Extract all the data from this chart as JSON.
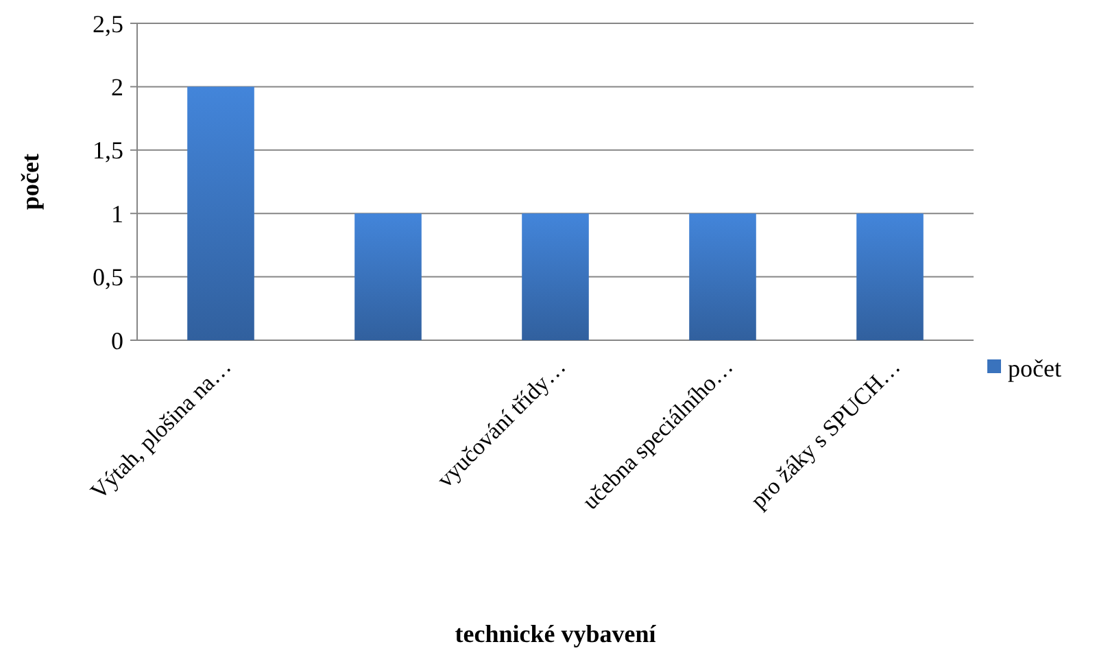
{
  "chart_data": {
    "type": "bar",
    "xlabel": "technické vybavení",
    "ylabel": "počet",
    "categories": [
      "Výtah, plošina na…",
      null,
      "vyučování třídy…",
      "učebna speciálního…",
      "pro žáky s SPUCH…"
    ],
    "series": [
      {
        "name": "počet",
        "color": "#3a73bd",
        "values": [
          2,
          1,
          1,
          1,
          1
        ]
      }
    ],
    "ylim": [
      0,
      2.5
    ],
    "yticks": [
      0,
      {
        "value": 0.5,
        "label": "0,5"
      },
      1,
      {
        "value": 1.5,
        "label": "1,5"
      },
      2,
      {
        "value": 2.5,
        "label": "2,5"
      }
    ],
    "grid": "y",
    "legend": "right"
  }
}
